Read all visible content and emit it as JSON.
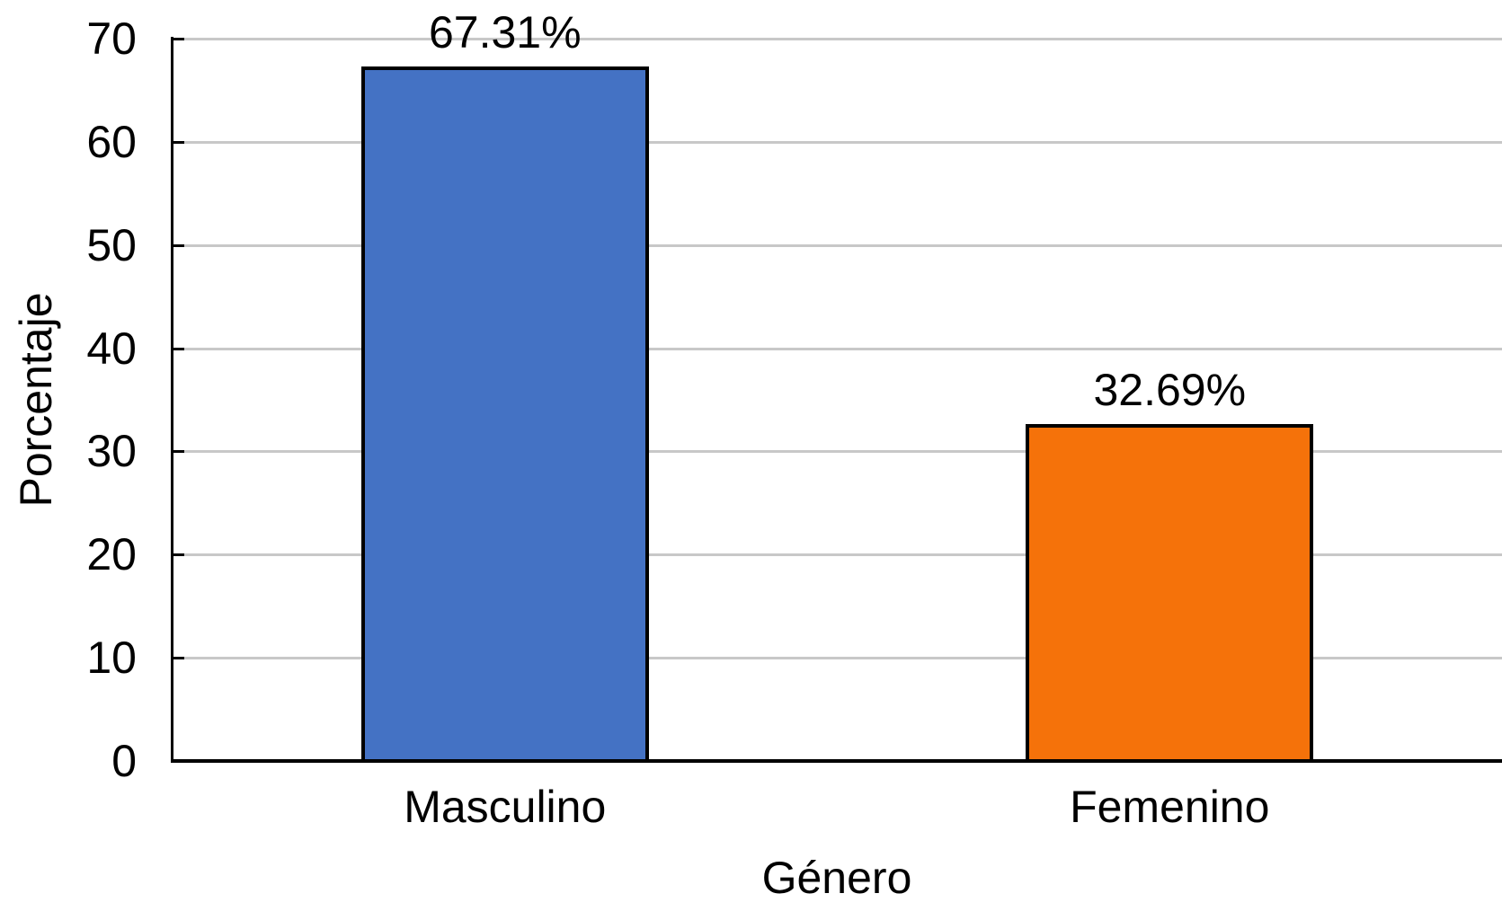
{
  "chart_data": {
    "type": "bar",
    "categories": [
      "Masculino",
      "Femenino"
    ],
    "values": [
      67.31,
      32.69
    ],
    "value_labels": [
      "67.31%",
      "32.69%"
    ],
    "bar_colors": [
      "#4472C4",
      "#F5720A"
    ],
    "bar_border_color": "#000000",
    "xlabel": "Género",
    "ylabel": "Porcentaje",
    "ylim": [
      0,
      70
    ],
    "yticks": [
      0,
      10,
      20,
      30,
      40,
      50,
      60,
      70
    ],
    "grid": "horizontal",
    "gridline_color": "#C8C8C8",
    "legend": "none"
  }
}
